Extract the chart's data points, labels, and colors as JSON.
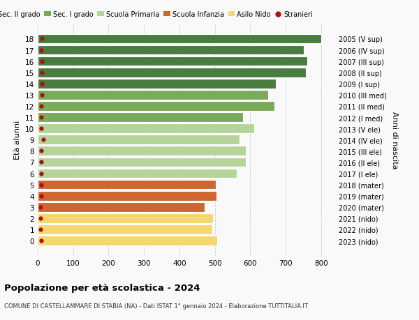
{
  "ages": [
    18,
    17,
    16,
    15,
    14,
    13,
    12,
    11,
    10,
    9,
    8,
    7,
    6,
    5,
    4,
    3,
    2,
    1,
    0
  ],
  "values": [
    800,
    752,
    762,
    758,
    672,
    650,
    668,
    580,
    612,
    570,
    588,
    588,
    562,
    503,
    505,
    472,
    495,
    492,
    507
  ],
  "right_labels": [
    "2005 (V sup)",
    "2006 (IV sup)",
    "2007 (III sup)",
    "2008 (II sup)",
    "2009 (I sup)",
    "2010 (III med)",
    "2011 (II med)",
    "2012 (I med)",
    "2013 (V ele)",
    "2014 (IV ele)",
    "2015 (III ele)",
    "2016 (II ele)",
    "2017 (I ele)",
    "2018 (mater)",
    "2019 (mater)",
    "2020 (mater)",
    "2021 (nido)",
    "2022 (nido)",
    "2023 (nido)"
  ],
  "bar_colors": [
    "#4a7c40",
    "#4a7c40",
    "#4a7c40",
    "#4a7c40",
    "#4a7c40",
    "#7aab5c",
    "#7aab5c",
    "#7aab5c",
    "#b5d49a",
    "#b5d49a",
    "#b5d49a",
    "#b5d49a",
    "#b5d49a",
    "#cc6633",
    "#cc6633",
    "#cc6633",
    "#f5d76e",
    "#f5d76e",
    "#f5d76e"
  ],
  "stranieri_values": [
    12,
    10,
    11,
    12,
    12,
    11,
    10,
    9,
    9,
    16,
    10,
    10,
    9,
    9,
    9,
    8,
    8,
    7,
    9
  ],
  "legend_labels": [
    "Sec. II grado",
    "Sec. I grado",
    "Scuola Primaria",
    "Scuola Infanzia",
    "Asilo Nido",
    "Stranieri"
  ],
  "legend_colors": [
    "#4a7c40",
    "#7aab5c",
    "#b5d49a",
    "#cc6633",
    "#f5d76e",
    "#aa1111"
  ],
  "ylabel": "Età alunni",
  "right_ylabel": "Anni di nascita",
  "title": "Popolazione per età scolastica - 2024",
  "subtitle": "COMUNE DI CASTELLAMMARE DI STABIA (NA) - Dati ISTAT 1° gennaio 2024 - Elaborazione TUTTITALIA.IT",
  "xlim": [
    0,
    840
  ],
  "xticks": [
    0,
    100,
    200,
    300,
    400,
    500,
    600,
    700,
    800
  ],
  "background_color": "#f9f9f9",
  "bar_edge_color": "white",
  "grid_color": "#cccccc"
}
